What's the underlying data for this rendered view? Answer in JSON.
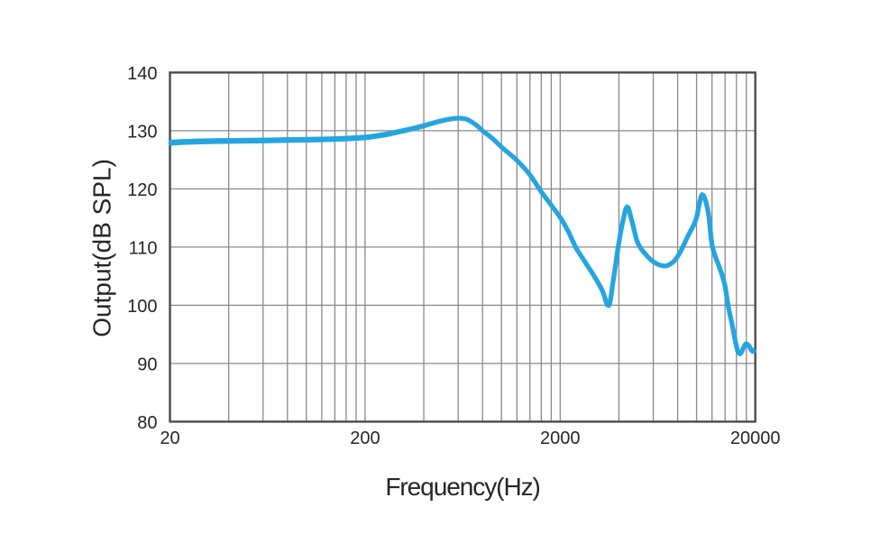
{
  "chart_data": {
    "type": "line",
    "title": "",
    "xlabel": "Frequency(Hz)",
    "ylabel": "Output(dB SPL)",
    "x_scale": "log",
    "xlim": [
      20,
      20000
    ],
    "ylim": [
      80,
      140
    ],
    "grid": true,
    "legend_position": "none",
    "x_gridlines": [
      20,
      40,
      60,
      80,
      100,
      120,
      140,
      160,
      180,
      200,
      400,
      600,
      800,
      1000,
      1200,
      1400,
      1600,
      1800,
      2000,
      4000,
      6000,
      8000,
      10000,
      12000,
      14000,
      16000,
      18000,
      20000
    ],
    "x_tick_labels": [
      {
        "value": 20,
        "label": "20"
      },
      {
        "value": 200,
        "label": "200"
      },
      {
        "value": 2000,
        "label": "2000"
      },
      {
        "value": 20000,
        "label": "20000"
      }
    ],
    "y_ticks": [
      {
        "value": 140,
        "label": "140"
      },
      {
        "value": 130,
        "label": "130"
      },
      {
        "value": 120,
        "label": "120"
      },
      {
        "value": 110,
        "label": "110"
      },
      {
        "value": 100,
        "label": "100"
      },
      {
        "value": 90,
        "label": "90"
      },
      {
        "value": 80,
        "label": "80"
      }
    ],
    "colors": {
      "curve": "#25A5E0",
      "grid": "#8A8A8A",
      "frame": "#4B4B4B",
      "text": "#262626",
      "background": "#FFFFFF"
    },
    "series": [
      {
        "name": "output-spl-frequency-response",
        "color": "#25A5E0",
        "points": [
          [
            20,
            127.95
          ],
          [
            25,
            128.1
          ],
          [
            32,
            128.2
          ],
          [
            45,
            128.27
          ],
          [
            60,
            128.32
          ],
          [
            80,
            128.4
          ],
          [
            100,
            128.45
          ],
          [
            125,
            128.52
          ],
          [
            150,
            128.6
          ],
          [
            175,
            128.72
          ],
          [
            200,
            128.85
          ],
          [
            250,
            129.3
          ],
          [
            300,
            129.85
          ],
          [
            350,
            130.35
          ],
          [
            400,
            130.85
          ],
          [
            450,
            131.35
          ],
          [
            500,
            131.75
          ],
          [
            550,
            132.02
          ],
          [
            600,
            132.15
          ],
          [
            650,
            132.05
          ],
          [
            700,
            131.55
          ],
          [
            750,
            130.85
          ],
          [
            800,
            130.0
          ],
          [
            900,
            128.65
          ],
          [
            1000,
            127.2
          ],
          [
            1200,
            124.9
          ],
          [
            1400,
            122.4
          ],
          [
            1600,
            119.5
          ],
          [
            1800,
            117.2
          ],
          [
            2000,
            115.1
          ],
          [
            2200,
            112.7
          ],
          [
            2400,
            110.0
          ],
          [
            2700,
            107.3
          ],
          [
            3000,
            104.9
          ],
          [
            3300,
            102.4
          ],
          [
            3540,
            99.85
          ],
          [
            3750,
            104.5
          ],
          [
            4000,
            110.8
          ],
          [
            4200,
            114.6
          ],
          [
            4410,
            117.0
          ],
          [
            4650,
            114.6
          ],
          [
            5000,
            110.7
          ],
          [
            5500,
            108.7
          ],
          [
            6000,
            107.5
          ],
          [
            6500,
            106.9
          ],
          [
            6900,
            106.75
          ],
          [
            7500,
            107.3
          ],
          [
            8000,
            108.4
          ],
          [
            9000,
            111.8
          ],
          [
            10000,
            115.1
          ],
          [
            10400,
            117.9
          ],
          [
            10700,
            119.1
          ],
          [
            11000,
            118.4
          ],
          [
            11500,
            115.8
          ],
          [
            12000,
            110.4
          ],
          [
            12500,
            108.3
          ],
          [
            13000,
            106.8
          ],
          [
            14000,
            103.3
          ],
          [
            14500,
            100.0
          ],
          [
            15250,
            96.5
          ],
          [
            16000,
            93.0
          ],
          [
            16300,
            92.0
          ],
          [
            16700,
            91.6
          ],
          [
            17300,
            92.5
          ],
          [
            17900,
            93.4
          ],
          [
            18500,
            93.1
          ],
          [
            19000,
            92.4
          ],
          [
            19400,
            92.05
          ],
          [
            20000,
            92.3
          ]
        ]
      }
    ]
  }
}
